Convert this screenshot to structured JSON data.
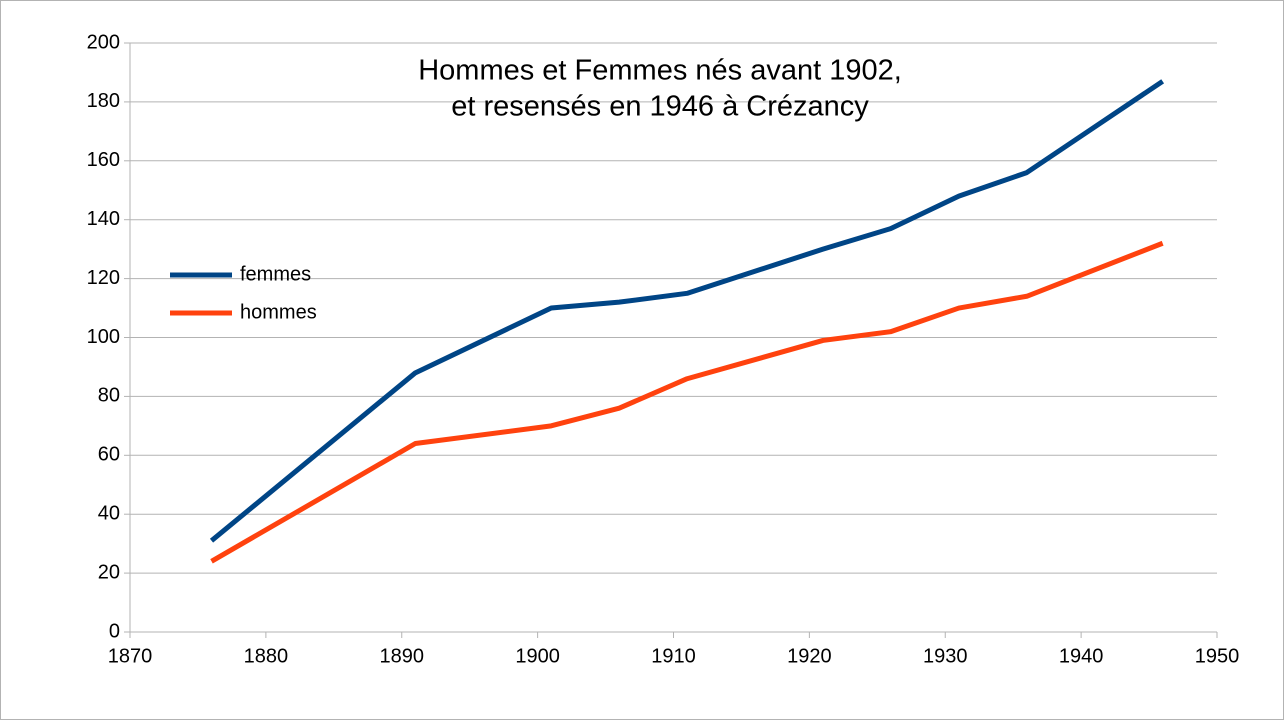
{
  "chart_data": {
    "type": "line",
    "title": [
      "Hommes et Femmes nés avant 1902,",
      "et resensés en 1946 à Crézancy"
    ],
    "x": [
      1876,
      1891,
      1901,
      1906,
      1911,
      1921,
      1926,
      1931,
      1936,
      1946
    ],
    "series": [
      {
        "name": "femmes",
        "color": "#004586",
        "values": [
          31,
          88,
          110,
          112,
          115,
          130,
          137,
          148,
          156,
          187
        ]
      },
      {
        "name": "hommes",
        "color": "#ff420e",
        "values": [
          24,
          64,
          70,
          76,
          86,
          99,
          102,
          110,
          114,
          132
        ]
      }
    ],
    "xlim": [
      1870,
      1950
    ],
    "xticks": [
      1870,
      1880,
      1890,
      1900,
      1910,
      1920,
      1930,
      1940,
      1950
    ],
    "ylim": [
      0,
      200
    ],
    "yticks": [
      0,
      20,
      40,
      60,
      80,
      100,
      120,
      140,
      160,
      180,
      200
    ],
    "grid": true,
    "legend": "left"
  }
}
